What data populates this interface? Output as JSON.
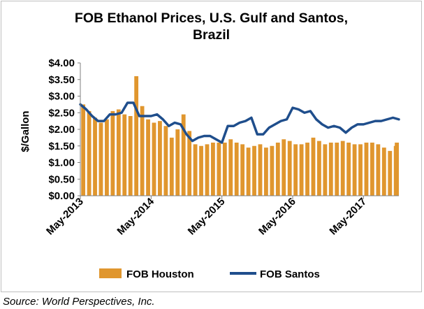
{
  "chart_data": {
    "type": "bar+line",
    "title_line1": "FOB Ethanol Prices, U.S. Gulf and Santos,",
    "title_line2": "Brazil",
    "ylabel": "$/Gallon",
    "xlabel": "",
    "ylim": [
      0,
      4
    ],
    "yticks": [
      "$0.00",
      "$0.50",
      "$1.00",
      "$1.50",
      "$2.00",
      "$2.50",
      "$3.00",
      "$3.50",
      "$4.00"
    ],
    "ytick_values": [
      0,
      0.5,
      1,
      1.5,
      2,
      2.5,
      3,
      3.5,
      4
    ],
    "x_range": [
      "2013-05",
      "2017-11"
    ],
    "xtick_labels": [
      "May-2013",
      "May-2014",
      "May-2015",
      "May-2016",
      "May-2017"
    ],
    "grid": "none",
    "legend": "bottom",
    "source": "Source: World Perspectives, Inc.",
    "colors": {
      "houston": "#e0962e",
      "santos": "#1f4e8c"
    },
    "series": [
      {
        "name": "FOB Houston",
        "kind": "bar",
        "x_dates": [
          "2013-05",
          "2013-06",
          "2013-07",
          "2013-08",
          "2013-09",
          "2013-10",
          "2013-11",
          "2013-12",
          "2014-01",
          "2014-02",
          "2014-03",
          "2014-04",
          "2014-05",
          "2014-06",
          "2014-07",
          "2014-08",
          "2014-09",
          "2014-10",
          "2014-11",
          "2014-12",
          "2015-01",
          "2015-02",
          "2015-03",
          "2015-04",
          "2015-05",
          "2015-06",
          "2015-07",
          "2015-08",
          "2015-09",
          "2015-10",
          "2015-11",
          "2015-12",
          "2016-01",
          "2016-02",
          "2016-03",
          "2016-04",
          "2016-05",
          "2016-06",
          "2016-07",
          "2016-08",
          "2016-09",
          "2016-10",
          "2016-11",
          "2016-12",
          "2017-01",
          "2017-02",
          "2017-03",
          "2017-04",
          "2017-05",
          "2017-06",
          "2017-07",
          "2017-08",
          "2017-09",
          "2017-10",
          "2017-11"
        ],
        "values": [
          2.75,
          2.55,
          2.35,
          2.2,
          2.3,
          2.55,
          2.6,
          2.45,
          2.4,
          3.6,
          2.7,
          2.3,
          2.2,
          2.25,
          2.1,
          1.75,
          2.0,
          2.45,
          1.95,
          1.55,
          1.5,
          1.55,
          1.6,
          1.6,
          1.6,
          1.7,
          1.6,
          1.55,
          1.45,
          1.5,
          1.55,
          1.45,
          1.5,
          1.6,
          1.7,
          1.65,
          1.55,
          1.55,
          1.6,
          1.75,
          1.65,
          1.55,
          1.6,
          1.6,
          1.65,
          1.6,
          1.55,
          1.55,
          1.6,
          1.6,
          1.55,
          1.45,
          1.35,
          1.5,
          1.6
        ]
      },
      {
        "name": "FOB Santos",
        "kind": "line",
        "x_dates": [
          "2013-05",
          "2013-06",
          "2013-07",
          "2013-08",
          "2013-09",
          "2013-10",
          "2013-11",
          "2013-12",
          "2014-01",
          "2014-02",
          "2014-03",
          "2014-04",
          "2014-05",
          "2014-06",
          "2014-07",
          "2014-08",
          "2014-09",
          "2014-10",
          "2014-11",
          "2014-12",
          "2015-01",
          "2015-02",
          "2015-03",
          "2015-04",
          "2015-05",
          "2015-06",
          "2015-07",
          "2015-08",
          "2015-09",
          "2015-10",
          "2015-11",
          "2015-12",
          "2016-01",
          "2016-02",
          "2016-03",
          "2016-04",
          "2016-05",
          "2016-06",
          "2016-07",
          "2016-08",
          "2016-09",
          "2016-10",
          "2016-11",
          "2016-12",
          "2017-01",
          "2017-02",
          "2017-03",
          "2017-04",
          "2017-05",
          "2017-06",
          "2017-07",
          "2017-08",
          "2017-09",
          "2017-10",
          "2017-11"
        ],
        "values": [
          2.75,
          2.6,
          2.4,
          2.25,
          2.25,
          2.45,
          2.45,
          2.5,
          2.8,
          2.8,
          2.4,
          2.4,
          2.4,
          2.45,
          2.3,
          2.1,
          2.2,
          2.15,
          1.85,
          1.65,
          1.75,
          1.8,
          1.8,
          1.7,
          1.6,
          2.1,
          2.1,
          2.2,
          2.25,
          2.35,
          1.85,
          1.85,
          2.05,
          2.15,
          2.25,
          2.3,
          2.65,
          2.6,
          2.5,
          2.55,
          2.3,
          2.15,
          2.05,
          2.1,
          2.05,
          1.9,
          2.05,
          2.15,
          2.15,
          2.2,
          2.25,
          2.25,
          2.3,
          2.35,
          2.3
        ]
      }
    ]
  }
}
